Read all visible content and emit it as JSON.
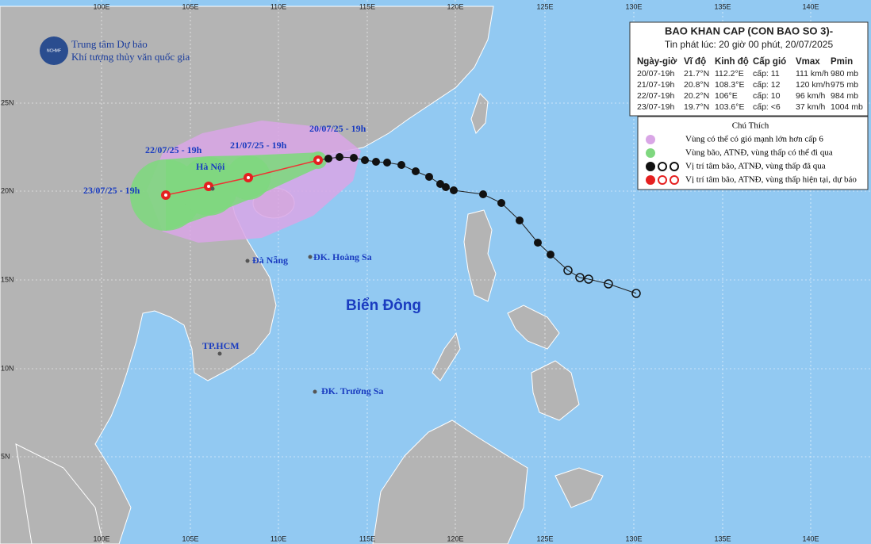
{
  "logo": {
    "line1": "Trung tâm Dự báo",
    "line2": "Khí tượng thủy văn quốc gia",
    "badge": "NCHMF"
  },
  "bulletin": {
    "title": "BAO KHAN CAP (CON BAO SO 3)-",
    "issued": "Tin phát lúc: 20 giờ 00 phút, 20/07/2025",
    "headers": [
      "Ngày-giờ",
      "Vĩ độ",
      "Kinh độ",
      "Cấp gió",
      "Vmax",
      "Pmin"
    ],
    "rows": [
      [
        "20/07-19h",
        "21.7°N",
        "112.2°E",
        "cấp: 11",
        "111 km/h",
        "980 mb"
      ],
      [
        "21/07-19h",
        "20.8°N",
        "108.3°E",
        "cấp: 12",
        "120 km/h",
        "975 mb"
      ],
      [
        "22/07-19h",
        "20.2°N",
        "106°E",
        "cấp: 10",
        "96 km/h",
        "984 mb"
      ],
      [
        "23/07-19h",
        "19.7°N",
        "103.6°E",
        "cấp: <6",
        "37 km/h",
        "1004 mb"
      ]
    ]
  },
  "legend": {
    "title": "Chú Thích",
    "items": [
      "Vùng có thể có gió mạnh lớn hơn cấp 6",
      "Vùng bão, ATNĐ, vùng thấp có thể đi qua",
      "Vị trí tâm bão, ATNĐ, vùng thấp đã qua",
      "Vị trí tâm bão, ATNĐ, vùng thấp hiện tại, dự báo"
    ]
  },
  "forecast_labels": [
    "20/07/25 - 19h",
    "21/07/25 - 19h",
    "22/07/25 - 19h",
    "23/07/25 - 19h"
  ],
  "places": [
    "Hà Nội",
    "Đà Nẵng",
    "ĐK. Hoàng Sa",
    "TP.HCM",
    "ĐK. Trường Sa"
  ],
  "sea_name": "Biển Đông",
  "longitudes": [
    "100E",
    "105E",
    "110E",
    "115E",
    "120E",
    "125E",
    "130E",
    "135E",
    "140E"
  ],
  "latitudes": [
    "25N",
    "20N",
    "15N",
    "10N",
    "5N"
  ]
}
